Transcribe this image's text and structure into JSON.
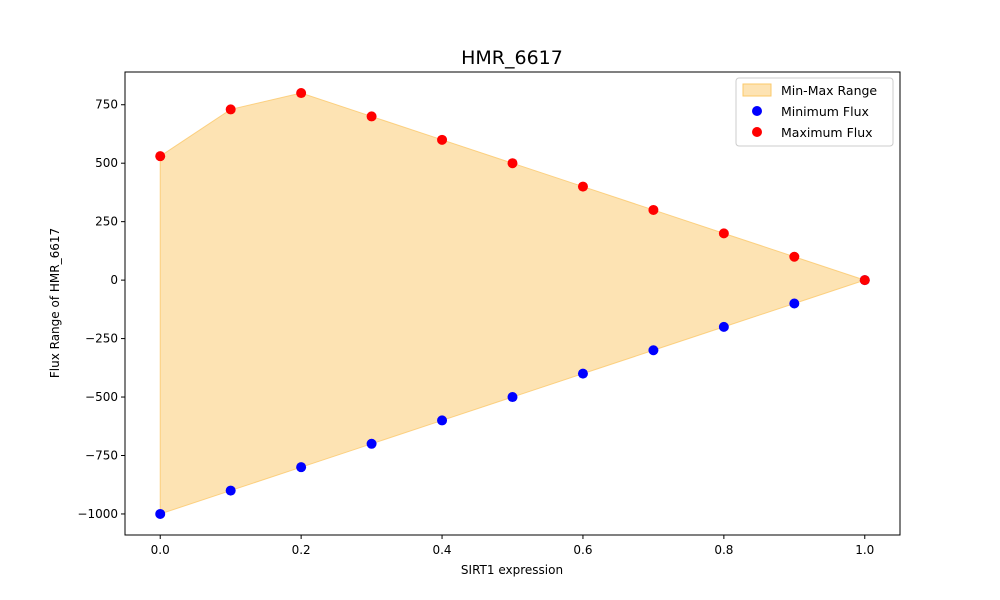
{
  "chart_data": {
    "type": "scatter",
    "title": "HMR_6617",
    "xlabel": "SIRT1 expression",
    "ylabel": "Flux Range of HMR_6617",
    "xlim": [
      -0.05,
      1.05
    ],
    "ylim": [
      -1090,
      890
    ],
    "x_ticks": [
      0.0,
      0.2,
      0.4,
      0.6,
      0.8,
      1.0
    ],
    "x_tick_labels": [
      "0.0",
      "0.2",
      "0.4",
      "0.6",
      "0.8",
      "1.0"
    ],
    "y_ticks": [
      -1000,
      -750,
      -500,
      -250,
      0,
      250,
      500,
      750
    ],
    "y_tick_labels": [
      "−1000",
      "−750",
      "−500",
      "−250",
      "0",
      "250",
      "500",
      "750"
    ],
    "x": [
      0.0,
      0.1,
      0.2,
      0.3,
      0.4,
      0.5,
      0.6,
      0.7,
      0.8,
      0.9,
      1.0
    ],
    "fill": {
      "name": "Min-Max Range",
      "color": "#fcd48a",
      "edge_color": "#fbc86a"
    },
    "series": [
      {
        "name": "Minimum Flux",
        "color": "#0000ff",
        "values": [
          -1000,
          -900,
          -800,
          -700,
          -600,
          -500,
          -400,
          -300,
          -200,
          -100,
          0
        ]
      },
      {
        "name": "Maximum Flux",
        "color": "#ff0000",
        "values": [
          530,
          730,
          800,
          700,
          600,
          500,
          400,
          300,
          200,
          100,
          0
        ]
      }
    ],
    "grid": false,
    "legend_position": "top-right"
  }
}
